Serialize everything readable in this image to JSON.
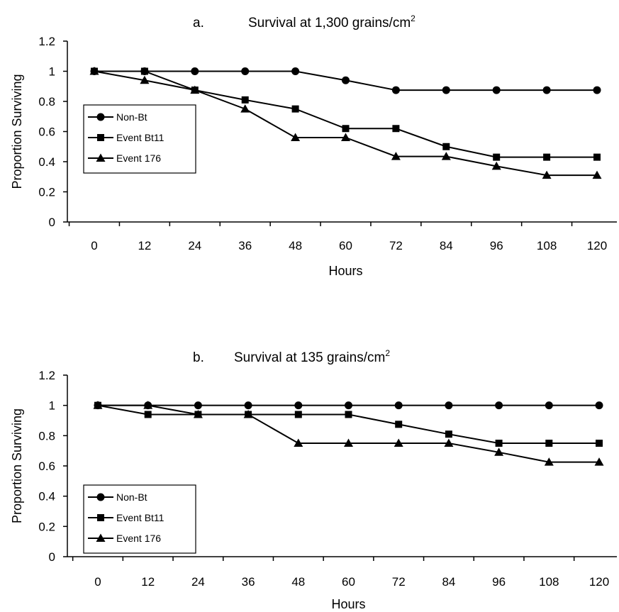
{
  "chart_data": [
    {
      "type": "line",
      "panel_label": "a.",
      "title": "Survival at 1,300 grains/cm",
      "title_superscript": "2",
      "xlabel": "Hours",
      "ylabel": "Proportion Surviving",
      "x": [
        0,
        12,
        24,
        36,
        48,
        60,
        72,
        84,
        96,
        108,
        120
      ],
      "x_tick_labels": [
        "0",
        "12",
        "24",
        "36",
        "48",
        "60",
        "72",
        "84",
        "96",
        "108",
        "120"
      ],
      "ylim": [
        0,
        1.2
      ],
      "y_ticks": [
        0,
        0.2,
        0.4,
        0.6,
        0.8,
        1,
        1.2
      ],
      "y_tick_labels": [
        "0",
        "0.2",
        "0.4",
        "0.6",
        "0.8",
        "1",
        "1.2"
      ],
      "grid": false,
      "legend_position": "left",
      "series": [
        {
          "name": "Non-Bt",
          "marker": "circle",
          "color": "#000000",
          "values": [
            1,
            1,
            1,
            1,
            1,
            0.94,
            0.875,
            0.875,
            0.875,
            0.875,
            0.875
          ]
        },
        {
          "name": "Event Bt11",
          "marker": "square",
          "color": "#000000",
          "values": [
            1,
            1,
            0.875,
            0.81,
            0.75,
            0.62,
            0.62,
            0.5,
            0.43,
            0.43,
            0.43
          ]
        },
        {
          "name": "Event 176",
          "marker": "triangle",
          "color": "#000000",
          "values": [
            1,
            0.94,
            0.875,
            0.75,
            0.56,
            0.56,
            0.435,
            0.435,
            0.37,
            0.31,
            0.31
          ]
        }
      ]
    },
    {
      "type": "line",
      "panel_label": "b.",
      "title": "Survival at 135 grains/cm",
      "title_superscript": "2",
      "xlabel": "Hours",
      "ylabel": "Proportion Surviving",
      "x": [
        0,
        12,
        24,
        36,
        48,
        60,
        72,
        84,
        96,
        108,
        120
      ],
      "x_tick_labels": [
        "0",
        "12",
        "24",
        "36",
        "48",
        "60",
        "72",
        "84",
        "96",
        "108",
        "120"
      ],
      "ylim": [
        0,
        1.2
      ],
      "y_ticks": [
        0,
        0.2,
        0.4,
        0.6,
        0.8,
        1,
        1.2
      ],
      "y_tick_labels": [
        "0",
        "0.2",
        "0.4",
        "0.6",
        "0.8",
        "1",
        "1.2"
      ],
      "grid": false,
      "legend_position": "bottom-left",
      "series": [
        {
          "name": "Non-Bt",
          "marker": "circle",
          "color": "#000000",
          "values": [
            1,
            1,
            1,
            1,
            1,
            1,
            1,
            1,
            1,
            1,
            1
          ]
        },
        {
          "name": "Event Bt11",
          "marker": "square",
          "color": "#000000",
          "values": [
            1,
            0.94,
            0.94,
            0.94,
            0.94,
            0.94,
            0.875,
            0.81,
            0.75,
            0.75,
            0.75
          ]
        },
        {
          "name": "Event 176",
          "marker": "triangle",
          "color": "#000000",
          "values": [
            1,
            1,
            0.94,
            0.94,
            0.75,
            0.75,
            0.75,
            0.75,
            0.69,
            0.625,
            0.625
          ]
        }
      ]
    }
  ]
}
